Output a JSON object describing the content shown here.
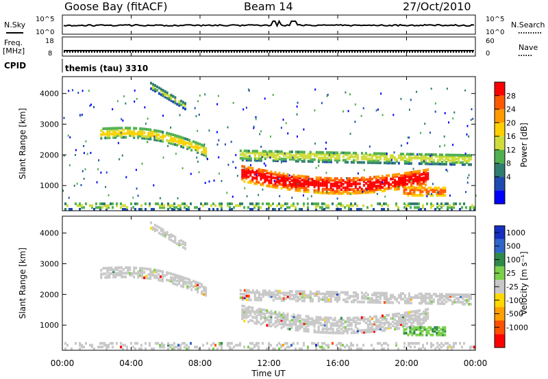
{
  "header": {
    "station": "Goose Bay (fitACF)",
    "beam": "Beam 14",
    "date": "27/Oct/2010"
  },
  "top_panels": {
    "nsky_label": "N.Sky",
    "nsky_ticks": [
      "10^5",
      "10^0"
    ],
    "nsearch_label": "N.Search",
    "nsearch_ticks": [
      "10^5",
      "10^0"
    ],
    "freq_label": "Freq.",
    "freq_unit": "[MHz]",
    "freq_ticks": [
      "18",
      "8"
    ],
    "nave_label": "Nave",
    "nave_ticks": [
      "60",
      "0"
    ],
    "cpid_label": "CPID",
    "cpid_value": "themis (tau) 3310"
  },
  "colors": {
    "power_scale": [
      "#0000ff",
      "#1e4bb0",
      "#2e7d6e",
      "#50b050",
      "#cfdc3c",
      "#ffd000",
      "#ff9a00",
      "#ff5a00",
      "#ff0000"
    ],
    "velocity_scale": [
      "#1530c0",
      "#2f66c8",
      "#2e8a4a",
      "#7bd04a",
      "#c8c8c8",
      "#ffd800",
      "#ffa000",
      "#ff5000",
      "#ff0000"
    ],
    "ground_scatter": "#c8c8c8",
    "sky_line": "#000000"
  },
  "chart_data": [
    {
      "type": "heatmap",
      "panel": "power",
      "ylabel": "Slant Range [km]",
      "yticks": [
        "4000",
        "3000",
        "2000",
        "1000"
      ],
      "ylim": [
        180,
        4550
      ],
      "xlim": [
        0,
        24
      ],
      "colorbar_label": "Power [dB]",
      "colorbar_ticks": [
        "28",
        "24",
        "20",
        "16",
        "12",
        "8",
        "4"
      ],
      "colorbar_range": [
        0,
        30
      ],
      "regions": [
        {
          "name": "arc-morning",
          "t0": 2.2,
          "t1": 8.4,
          "r0": 2750,
          "r1": 2150,
          "arch": 250,
          "width": 320,
          "min_db": 8,
          "max_db": 18
        },
        {
          "name": "patch-early",
          "t0": 5.1,
          "t1": 7.2,
          "r0": 4300,
          "r1": 3600,
          "arch": 0,
          "width": 200,
          "min_db": 4,
          "max_db": 14
        },
        {
          "name": "band-upper",
          "t0": 10.3,
          "t1": 23.8,
          "r0": 2050,
          "r1": 1900,
          "arch": 0,
          "width": 350,
          "min_db": 6,
          "max_db": 16
        },
        {
          "name": "band-main",
          "t0": 10.4,
          "t1": 21.3,
          "r0": 1450,
          "r1": 1350,
          "arch": -350,
          "width": 520,
          "min_db": 18,
          "max_db": 30
        },
        {
          "name": "band-late",
          "t0": 19.8,
          "t1": 22.3,
          "r0": 850,
          "r1": 850,
          "arch": 0,
          "width": 250,
          "min_db": 16,
          "max_db": 26
        },
        {
          "name": "near-range",
          "t0": 0,
          "t1": 24,
          "r0": 380,
          "r1": 380,
          "arch": 0,
          "width": 220,
          "min_db": 4,
          "max_db": 14
        }
      ]
    },
    {
      "type": "heatmap",
      "panel": "velocity",
      "ylabel": "Slant Range [km]",
      "xlabel": "Time UT",
      "yticks": [
        "4000",
        "3000",
        "2000",
        "1000"
      ],
      "xticks": [
        "00:00",
        "04:00",
        "08:00",
        "12:00",
        "16:00",
        "20:00",
        "00:00"
      ],
      "ylim": [
        180,
        4550
      ],
      "xlim": [
        0,
        24
      ],
      "colorbar_label": "Velocity [m s⁻¹]",
      "colorbar_ticks": [
        "1000",
        "500",
        "100",
        "25",
        "-25",
        "-100",
        "-500",
        "-1000"
      ],
      "note": "ground scatter (grey) dominates; F-region echoes mostly slow"
    },
    {
      "type": "line",
      "panel": "N.Sky / N.Search",
      "xlim": [
        0,
        24
      ],
      "ylim": [
        0,
        5
      ],
      "series": [
        {
          "values_desc": "near-constant at ~10^3 with small steps"
        }
      ]
    }
  ]
}
